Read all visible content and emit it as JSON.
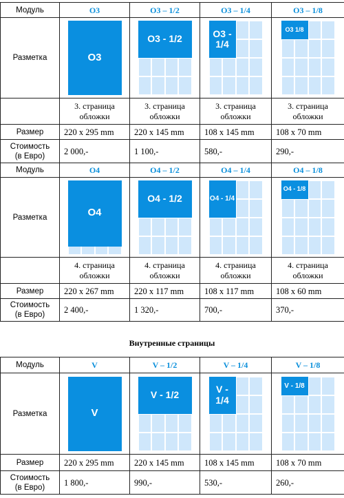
{
  "labels": {
    "module": "Модуль",
    "layout": "Разметка",
    "size": "Размер",
    "cost": "Стоимость\n(в Евро)"
  },
  "section_heading": "Внутренные страницы",
  "tables": [
    {
      "modules": [
        {
          "name": "O3",
          "block": "O3",
          "placement": "",
          "size": "220 x 295 mm",
          "price": "2 000,-",
          "kind": "full"
        },
        {
          "name": "O3 – 1/2",
          "block": "O3 - 1/2",
          "placement": "3. страница обложки",
          "size": "220 x 145 mm",
          "price": "1 100,-",
          "kind": "half"
        },
        {
          "name": "O3 – 1/4",
          "block": "O3 - 1/4",
          "placement": "3. страница обложки",
          "size": "108 x 145 mm",
          "price": "580,-",
          "kind": "quarter"
        },
        {
          "name": "O3 – 1/8",
          "block": "O3 1/8",
          "placement": "3. страница обложки",
          "size": "108 x 70 mm",
          "price": "290,-",
          "kind": "eighth"
        }
      ],
      "first_placement": "3. страница обложки"
    },
    {
      "modules": [
        {
          "name": "O4",
          "block": "O4",
          "placement": "",
          "size": "220 x 267 mm",
          "price": "2 400,-",
          "kind": "full"
        },
        {
          "name": "O4 – 1/2",
          "block": "O4 - 1/2",
          "placement": "4. страница обложки",
          "size": "220 x 117 mm",
          "price": "1 320,-",
          "kind": "half"
        },
        {
          "name": "O4 – 1/4",
          "block": "O4 - 1/4",
          "placement": "4. страница обложки",
          "size": "108 x 117 mm",
          "price": "700,-",
          "kind": "quarter"
        },
        {
          "name": "O4 – 1/8",
          "block": "O4 - 1/8",
          "placement": "4. страница обложки",
          "size": "108 x 60 mm",
          "price": "370,-",
          "kind": "eighth"
        }
      ],
      "first_placement": "4. страница обложки"
    },
    {
      "modules": [
        {
          "name": "V",
          "block": "V",
          "size": "220 x 295 mm",
          "price": "1 800,-",
          "kind": "full"
        },
        {
          "name": "V – 1/2",
          "block": "V - 1/2",
          "size": "220 x 145 mm",
          "price": "990,-",
          "kind": "half"
        },
        {
          "name": "V – 1/4",
          "block": "V - 1/4",
          "size": "108 x 145 mm",
          "price": "530,-",
          "kind": "quarter"
        },
        {
          "name": "V – 1/8",
          "block": "V - 1/8",
          "size": "108 x 70 mm",
          "price": "260,-",
          "kind": "eighth"
        }
      ]
    }
  ],
  "colors": {
    "accent": "#0a8fe0",
    "light": "#cfe7fb",
    "module_text": "#0a8fdb"
  }
}
